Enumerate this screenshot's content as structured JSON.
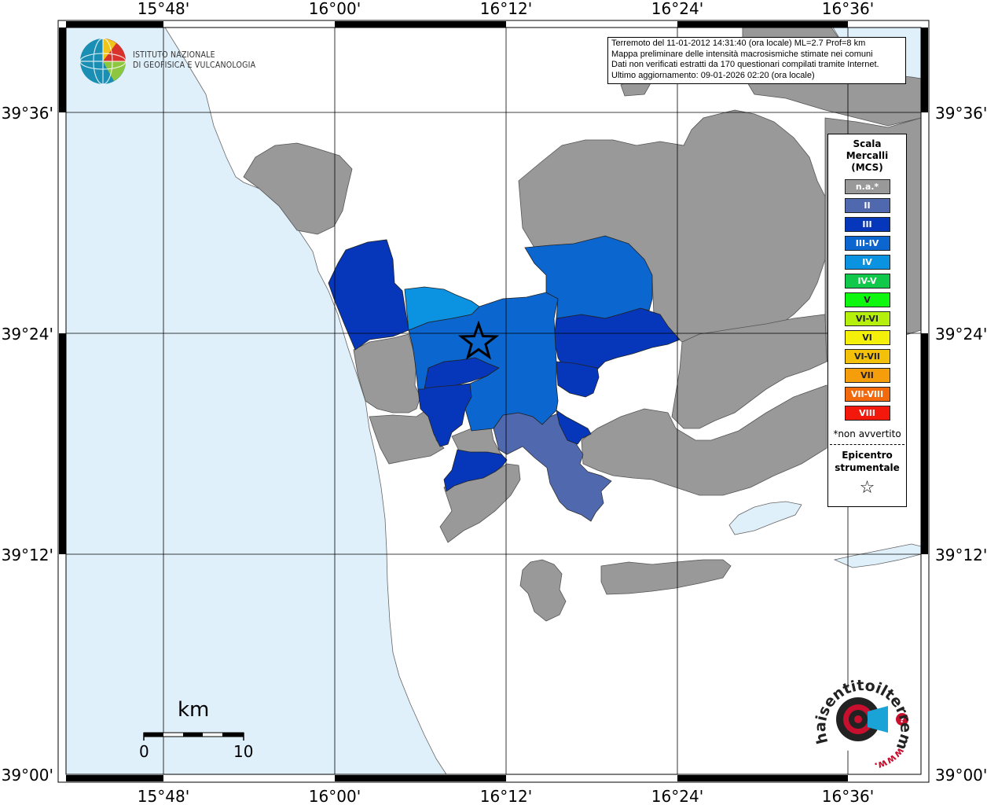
{
  "info": {
    "line1": "Terremoto del 11-01-2012 14:31:40 (ora locale) ML=2.7 Prof=8 km",
    "line2": "Mappa preliminare delle intensità macrosismiche stimate nei comuni",
    "line3": "Dati non verificati estratti da 170 questionari compilati tramite Internet.",
    "line4": "Ultimo aggiornamento: 09-01-2026 02:20 (ora locale)"
  },
  "institute": {
    "line1": "ISTITUTO NAZIONALE",
    "line2": "DI GEOFISICA E VULCANOLOGIA"
  },
  "axes": {
    "top": [
      "15°48'",
      "16°00'",
      "16°12'",
      "16°24'",
      "16°36'"
    ],
    "bottom": [
      "15°48'",
      "16°00'",
      "16°12'",
      "16°24'",
      "16°36'"
    ],
    "left": [
      "39°36'",
      "39°24'",
      "39°12'",
      "39°00'"
    ],
    "right": [
      "39°36'",
      "39°24'",
      "39°12'",
      "39°00'"
    ]
  },
  "legend": {
    "title1": "Scala",
    "title2": "Mercalli",
    "title3": "(MCS)",
    "items": [
      {
        "label": "n.a.*",
        "color": "#999999"
      },
      {
        "label": "II",
        "color": "#4f68ae"
      },
      {
        "label": "III",
        "color": "#0636b9"
      },
      {
        "label": "III-IV",
        "color": "#0b66d0"
      },
      {
        "label": "IV",
        "color": "#0b92e0"
      },
      {
        "label": "IV-V",
        "color": "#10c84a"
      },
      {
        "label": "V",
        "color": "#0ef70e"
      },
      {
        "label": "VI-VI",
        "color": "#b5f00d"
      },
      {
        "label": "VI",
        "color": "#f4f00a"
      },
      {
        "label": "VI-VII",
        "color": "#f4c10a"
      },
      {
        "label": "VII",
        "color": "#f69d0c"
      },
      {
        "label": "VII-VIII",
        "color": "#f4690c"
      },
      {
        "label": "VIII",
        "color": "#f4180c"
      }
    ],
    "note": "*non avvertito",
    "epicenter1": "Epicentro",
    "epicenter2": "strumentale",
    "star": "☆"
  },
  "scalebar": {
    "unit": "km",
    "min": "0",
    "max": "10"
  },
  "colors": {
    "sea": "#e0f0fb",
    "land": "#ffffff",
    "na": "#999999",
    "II": "#4f68ae",
    "III": "#0636b9",
    "III-IV": "#0b66d0",
    "IV": "#0b92e0"
  },
  "haisentito": {
    "text": "haisentitoilterremoto.it",
    "url": "www."
  }
}
